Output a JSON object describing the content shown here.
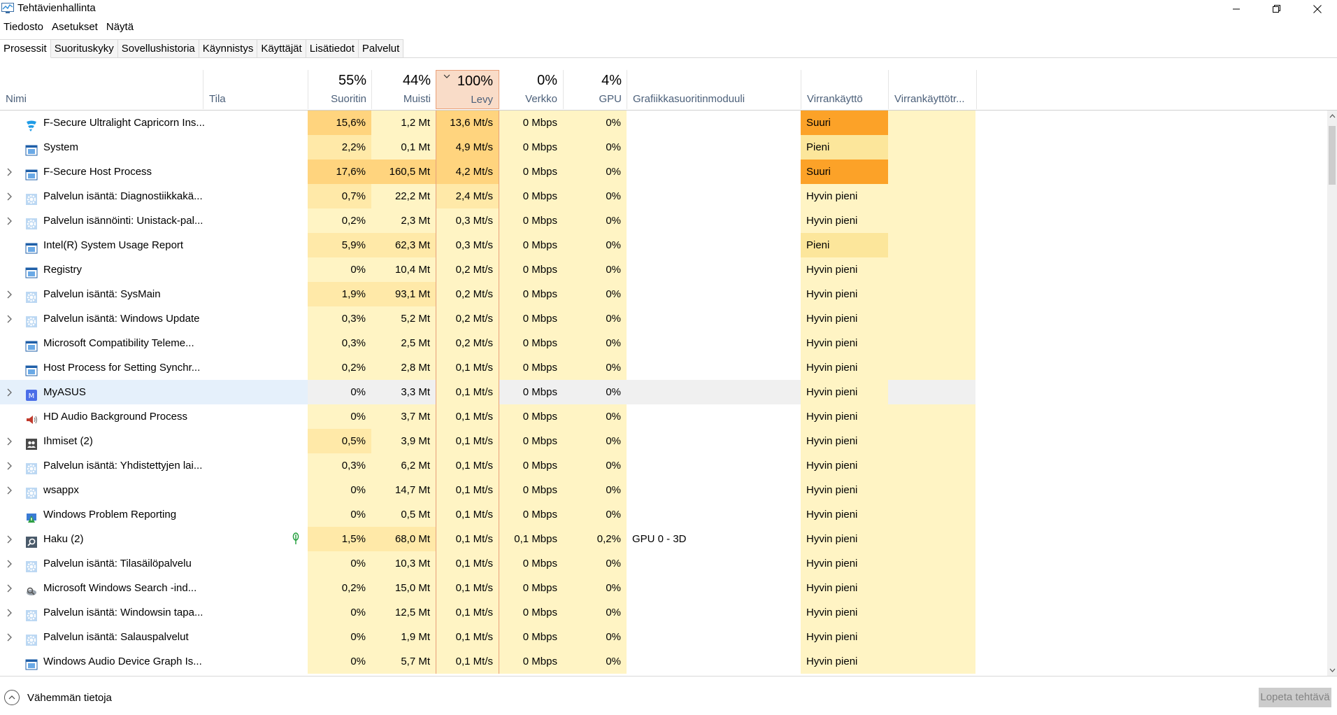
{
  "window": {
    "title": "Tehtävienhallinta",
    "icon": "task-manager-icon"
  },
  "menu": [
    "Tiedosto",
    "Asetukset",
    "Näytä"
  ],
  "tabs": [
    "Prosessit",
    "Suorituskyky",
    "Sovellushistoria",
    "Käynnistys",
    "Käyttäjät",
    "Lisätiedot",
    "Palvelut"
  ],
  "active_tab": "Prosessit",
  "columns": {
    "name": "Nimi",
    "status": "Tila",
    "cpu": {
      "pct": "55%",
      "label": "Suoritin"
    },
    "mem": {
      "pct": "44%",
      "label": "Muisti"
    },
    "disk": {
      "pct": "100%",
      "label": "Levy"
    },
    "net": {
      "pct": "0%",
      "label": "Verkko"
    },
    "gpu": {
      "pct": "4%",
      "label": "GPU"
    },
    "gpu_engine": "Grafiikkasuoritinmoduuli",
    "power": "Virrankäyttö",
    "power_trend": "Virrankäyttötr..."
  },
  "processes": [
    {
      "name": "F-Secure Ultralight Capricorn Ins...",
      "icon": "fsecure-shield-icon",
      "expand": false,
      "cpu": "15,6%",
      "mem": "1,2 Mt",
      "disk": "13,6 Mt/s",
      "net": "0 Mbps",
      "gpu": "0%",
      "engine": "",
      "power": "Suuri"
    },
    {
      "name": "System",
      "icon": "window-app-icon",
      "expand": false,
      "cpu": "2,2%",
      "mem": "0,1 Mt",
      "disk": "4,9 Mt/s",
      "net": "0 Mbps",
      "gpu": "0%",
      "engine": "",
      "power": "Pieni"
    },
    {
      "name": "F-Secure Host Process",
      "icon": "window-app-icon",
      "expand": true,
      "cpu": "17,6%",
      "mem": "160,5 Mt",
      "disk": "4,2 Mt/s",
      "net": "0 Mbps",
      "gpu": "0%",
      "engine": "",
      "power": "Suuri"
    },
    {
      "name": "Palvelun isäntä: Diagnostiikkakä...",
      "icon": "gear-icon",
      "expand": true,
      "cpu": "0,7%",
      "mem": "22,2 Mt",
      "disk": "2,4 Mt/s",
      "net": "0 Mbps",
      "gpu": "0%",
      "engine": "",
      "power": "Hyvin pieni"
    },
    {
      "name": "Palvelun isännöinti: Unistack-pal...",
      "icon": "gear-icon",
      "expand": true,
      "cpu": "0,2%",
      "mem": "2,3 Mt",
      "disk": "0,3 Mt/s",
      "net": "0 Mbps",
      "gpu": "0%",
      "engine": "",
      "power": "Hyvin pieni"
    },
    {
      "name": "Intel(R) System Usage Report",
      "icon": "window-app-icon",
      "expand": false,
      "cpu": "5,9%",
      "mem": "62,3 Mt",
      "disk": "0,3 Mt/s",
      "net": "0 Mbps",
      "gpu": "0%",
      "engine": "",
      "power": "Pieni"
    },
    {
      "name": "Registry",
      "icon": "window-app-icon",
      "expand": false,
      "cpu": "0%",
      "mem": "10,4 Mt",
      "disk": "0,2 Mt/s",
      "net": "0 Mbps",
      "gpu": "0%",
      "engine": "",
      "power": "Hyvin pieni"
    },
    {
      "name": "Palvelun isäntä: SysMain",
      "icon": "gear-icon",
      "expand": true,
      "cpu": "1,9%",
      "mem": "93,1 Mt",
      "disk": "0,2 Mt/s",
      "net": "0 Mbps",
      "gpu": "0%",
      "engine": "",
      "power": "Hyvin pieni"
    },
    {
      "name": "Palvelun isäntä: Windows Update",
      "icon": "gear-icon",
      "expand": true,
      "cpu": "0,3%",
      "mem": "5,2 Mt",
      "disk": "0,2 Mt/s",
      "net": "0 Mbps",
      "gpu": "0%",
      "engine": "",
      "power": "Hyvin pieni"
    },
    {
      "name": "Microsoft Compatibility Teleme...",
      "icon": "window-app-icon",
      "expand": false,
      "cpu": "0,3%",
      "mem": "2,5 Mt",
      "disk": "0,2 Mt/s",
      "net": "0 Mbps",
      "gpu": "0%",
      "engine": "",
      "power": "Hyvin pieni"
    },
    {
      "name": "Host Process for Setting Synchr...",
      "icon": "window-app-icon",
      "expand": false,
      "cpu": "0,2%",
      "mem": "2,8 Mt",
      "disk": "0,1 Mt/s",
      "net": "0 Mbps",
      "gpu": "0%",
      "engine": "",
      "power": "Hyvin pieni"
    },
    {
      "name": "MyASUS",
      "icon": "myasus-icon",
      "expand": true,
      "cpu": "0%",
      "mem": "3,3 Mt",
      "disk": "0,1 Mt/s",
      "net": "0 Mbps",
      "gpu": "0%",
      "engine": "",
      "power": "Hyvin pieni"
    },
    {
      "name": "HD Audio Background Process",
      "icon": "speaker-icon",
      "expand": false,
      "cpu": "0%",
      "mem": "3,7 Mt",
      "disk": "0,1 Mt/s",
      "net": "0 Mbps",
      "gpu": "0%",
      "engine": "",
      "power": "Hyvin pieni"
    },
    {
      "name": "Ihmiset (2)",
      "icon": "people-icon",
      "expand": true,
      "cpu": "0,5%",
      "mem": "3,9 Mt",
      "disk": "0,1 Mt/s",
      "net": "0 Mbps",
      "gpu": "0%",
      "engine": "",
      "power": "Hyvin pieni"
    },
    {
      "name": "Palvelun isäntä: Yhdistettyjen lai...",
      "icon": "gear-icon",
      "expand": true,
      "cpu": "0,3%",
      "mem": "6,2 Mt",
      "disk": "0,1 Mt/s",
      "net": "0 Mbps",
      "gpu": "0%",
      "engine": "",
      "power": "Hyvin pieni"
    },
    {
      "name": "wsappx",
      "icon": "gear-icon",
      "expand": true,
      "cpu": "0%",
      "mem": "14,7 Mt",
      "disk": "0,1 Mt/s",
      "net": "0 Mbps",
      "gpu": "0%",
      "engine": "",
      "power": "Hyvin pieni"
    },
    {
      "name": "Windows Problem Reporting",
      "icon": "problem-report-icon",
      "expand": false,
      "cpu": "0%",
      "mem": "0,5 Mt",
      "disk": "0,1 Mt/s",
      "net": "0 Mbps",
      "gpu": "0%",
      "engine": "",
      "power": "Hyvin pieni"
    },
    {
      "name": "Haku (2)",
      "icon": "search-icon",
      "expand": true,
      "cpu": "1,5%",
      "mem": "68,0 Mt",
      "disk": "0,1 Mt/s",
      "net": "0,1 Mbps",
      "gpu": "0,2%",
      "engine": "GPU 0 - 3D",
      "power": "Hyvin pieni",
      "suspended_leaf": true
    },
    {
      "name": "Palvelun isäntä: Tilasäilöpalvelu",
      "icon": "gear-icon",
      "expand": true,
      "cpu": "0%",
      "mem": "10,3 Mt",
      "disk": "0,1 Mt/s",
      "net": "0 Mbps",
      "gpu": "0%",
      "engine": "",
      "power": "Hyvin pieni"
    },
    {
      "name": "Microsoft Windows Search -ind...",
      "icon": "search-indexer-icon",
      "expand": true,
      "cpu": "0,2%",
      "mem": "15,0 Mt",
      "disk": "0,1 Mt/s",
      "net": "0 Mbps",
      "gpu": "0%",
      "engine": "",
      "power": "Hyvin pieni"
    },
    {
      "name": "Palvelun isäntä: Windowsin tapa...",
      "icon": "gear-icon",
      "expand": true,
      "cpu": "0%",
      "mem": "12,5 Mt",
      "disk": "0,1 Mt/s",
      "net": "0 Mbps",
      "gpu": "0%",
      "engine": "",
      "power": "Hyvin pieni"
    },
    {
      "name": "Palvelun isäntä: Salauspalvelut",
      "icon": "gear-icon",
      "expand": true,
      "cpu": "0%",
      "mem": "1,9 Mt",
      "disk": "0,1 Mt/s",
      "net": "0 Mbps",
      "gpu": "0%",
      "engine": "",
      "power": "Hyvin pieni"
    },
    {
      "name": "Windows Audio Device Graph Is...",
      "icon": "window-app-icon",
      "expand": false,
      "cpu": "0%",
      "mem": "5,7 Mt",
      "disk": "0,1 Mt/s",
      "net": "0 Mbps",
      "gpu": "0%",
      "engine": "",
      "power": "Hyvin pieni"
    }
  ],
  "highlighted_row": "MyASUS",
  "footer": {
    "fewer_details": "Vähemmän tietoja",
    "end_task": "Lopeta tehtävä"
  },
  "colors": {
    "heat_light": "#fff4c4",
    "heat_mid": "#ffe9a8",
    "heat_strong": "#ffd47e",
    "disk_header": "#f9dcc8",
    "power_high": "#fca228",
    "power_low": "#fce69b",
    "row_highlight": "#e5f0fb"
  }
}
